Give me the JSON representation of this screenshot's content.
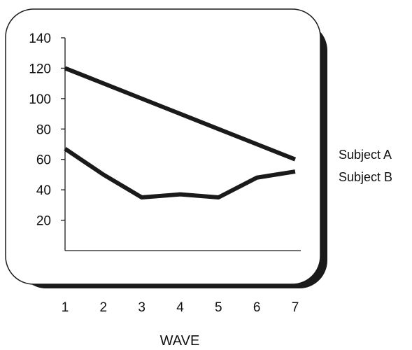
{
  "chart_data": {
    "type": "line",
    "xlabel": "WAVE",
    "ylabel": "",
    "x": [
      1,
      2,
      3,
      4,
      5,
      6,
      7
    ],
    "yticks": [
      20,
      40,
      60,
      80,
      100,
      120,
      140
    ],
    "ylim": [
      0,
      140
    ],
    "xlim": [
      1,
      7
    ],
    "grid": false,
    "legend_position": "right",
    "series": [
      {
        "name": "Subject A",
        "values": [
          120,
          110,
          100,
          90,
          80,
          70,
          60
        ]
      },
      {
        "name": "Subject B",
        "values": [
          67,
          50,
          35,
          37,
          35,
          48,
          52
        ]
      }
    ]
  },
  "colors": {
    "line": "#1a1a1a",
    "shadow": "#1a1a1a",
    "panel": "#ffffff"
  }
}
